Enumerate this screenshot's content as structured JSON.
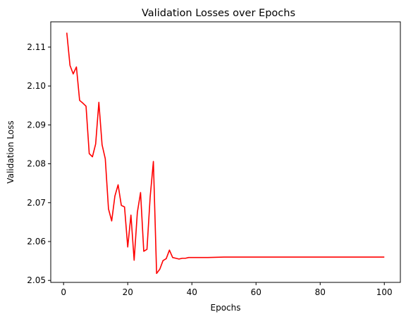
{
  "chart_data": {
    "type": "line",
    "title": "Validation Losses over Epochs",
    "xlabel": "Epochs",
    "ylabel": "Validation Loss",
    "xlim": [
      -4,
      105
    ],
    "ylim": [
      2.0495,
      2.1165
    ],
    "xticks": [
      0,
      20,
      40,
      60,
      80,
      100
    ],
    "yticks": [
      2.05,
      2.06,
      2.07,
      2.08,
      2.09,
      2.1,
      2.11
    ],
    "ytick_labels": [
      "2.05",
      "2.06",
      "2.07",
      "2.08",
      "2.09",
      "2.10",
      "2.11"
    ],
    "grid": false,
    "legend": "none",
    "series": [
      {
        "color": "#ff0000",
        "x": [
          1,
          2,
          3,
          4,
          5,
          6,
          7,
          8,
          9,
          10,
          11,
          12,
          13,
          14,
          15,
          16,
          17,
          18,
          19,
          20,
          21,
          22,
          23,
          24,
          25,
          26,
          27,
          28,
          29,
          30,
          31,
          32,
          33,
          34,
          35,
          36,
          37,
          38,
          39,
          40,
          45,
          50,
          60,
          70,
          80,
          90,
          100
        ],
        "y": [
          2.1137,
          2.1053,
          2.1031,
          2.1049,
          2.0963,
          2.0956,
          2.0948,
          2.0826,
          2.0818,
          2.0851,
          2.0958,
          2.0849,
          2.0813,
          2.0684,
          2.0653,
          2.0717,
          2.0746,
          2.0693,
          2.0689,
          2.0586,
          2.0668,
          2.0552,
          2.0675,
          2.0726,
          2.0575,
          2.058,
          2.0715,
          2.0806,
          2.0518,
          2.0529,
          2.0551,
          2.0556,
          2.0578,
          2.0559,
          2.0557,
          2.0555,
          2.0557,
          2.0557,
          2.0559,
          2.0559,
          2.0559,
          2.056,
          2.056,
          2.056,
          2.056,
          2.056,
          2.056
        ]
      }
    ]
  }
}
